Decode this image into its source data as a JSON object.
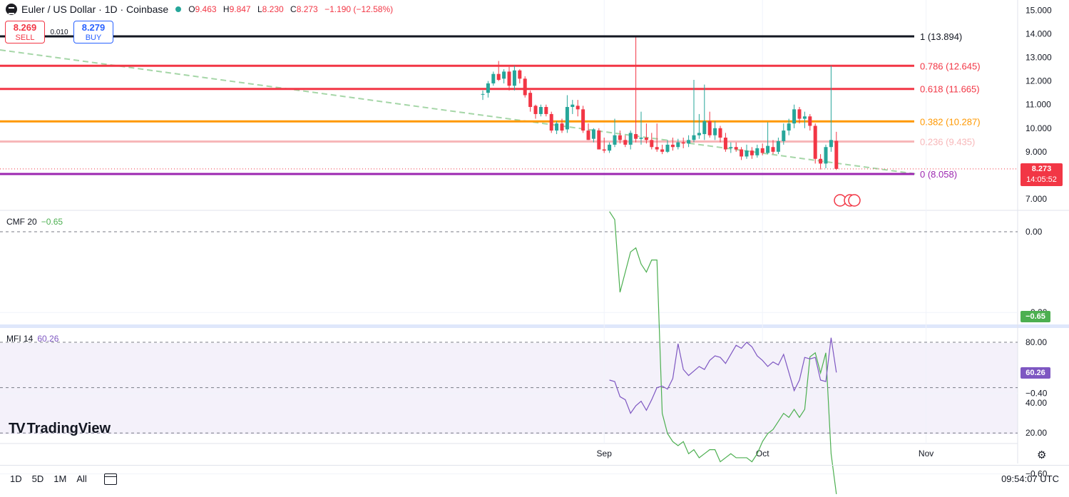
{
  "header": {
    "symbol": "Euler / US Dollar · 1D · Coinbase",
    "open_label": "O",
    "open": "9.463",
    "high_label": "H",
    "high": "9.847",
    "low_label": "L",
    "low": "8.230",
    "close_label": "C",
    "close": "8.273",
    "change": "−1.190 (−12.58%)"
  },
  "trade": {
    "sell_price": "8.269",
    "sell_label": "SELL",
    "spread": "0.010",
    "buy_price": "8.279",
    "buy_label": "BUY"
  },
  "colors": {
    "up": "#26a69a",
    "down": "#f23645",
    "fib_1": "#131722",
    "fib_786": "#f23645",
    "fib_618": "#f23645",
    "fib_382": "#ff9800",
    "fib_236": "#f7b7b9",
    "fib_0": "#9c27b0",
    "cmf": "#4caf50",
    "mfi": "#7e57c2",
    "trend": "#a5d6a7"
  },
  "fib_levels": [
    {
      "label": "1 (13.894)",
      "value": 13.894,
      "color_key": "fib_1"
    },
    {
      "label": "0.786 (12.645)",
      "value": 12.645,
      "color_key": "fib_786"
    },
    {
      "label": "0.618 (11.665)",
      "value": 11.665,
      "color_key": "fib_618"
    },
    {
      "label": "0.382 (10.287)",
      "value": 10.287,
      "color_key": "fib_382"
    },
    {
      "label": "0.236 (9.435)",
      "value": 9.435,
      "color_key": "fib_236"
    },
    {
      "label": "0 (8.058)",
      "value": 8.058,
      "color_key": "fib_0"
    }
  ],
  "price_axis_ticks": [
    "15.000",
    "14.000",
    "13.000",
    "12.000",
    "11.000",
    "10.000",
    "9.000",
    "7.000"
  ],
  "last_price": {
    "value": "8.273",
    "countdown": "14:05:52"
  },
  "cmf": {
    "label": "CMF 20",
    "value": "−0.65",
    "tag": "−0.65",
    "ticks": [
      "0.00",
      "−0.20",
      "−0.40",
      "−0.60"
    ],
    "values": [
      0.05,
      0.03,
      -0.15,
      -0.1,
      -0.05,
      -0.04,
      -0.08,
      -0.1,
      -0.07,
      -0.07,
      -0.45,
      -0.5,
      -0.52,
      -0.53,
      -0.52,
      -0.55,
      -0.54,
      -0.56,
      -0.55,
      -0.54,
      -0.54,
      -0.57,
      -0.56,
      -0.55,
      -0.56,
      -0.56,
      -0.56,
      -0.57,
      -0.55,
      -0.52,
      -0.5,
      -0.49,
      -0.47,
      -0.45,
      -0.46,
      -0.44,
      -0.46,
      -0.44,
      -0.31,
      -0.3,
      -0.35,
      -0.3,
      -0.55,
      -0.65
    ]
  },
  "mfi": {
    "label": "MFI 14",
    "value": "60.26",
    "tag": "60.26",
    "ticks": [
      "80.00",
      "40.00",
      "20.00"
    ],
    "values": [
      55,
      54,
      44,
      42,
      33,
      38,
      41,
      35,
      42,
      50,
      51,
      49,
      56,
      79,
      62,
      58,
      61,
      64,
      62,
      68,
      71,
      70,
      66,
      72,
      78,
      76,
      80,
      77,
      71,
      68,
      64,
      67,
      65,
      72,
      60,
      48,
      55,
      70,
      69,
      70,
      55,
      54,
      83,
      60
    ]
  },
  "candles": [
    {
      "d": 0,
      "o": 11.45,
      "h": 11.6,
      "l": 11.2,
      "c": 11.45
    },
    {
      "d": 1,
      "o": 11.5,
      "h": 12.0,
      "l": 11.3,
      "c": 11.9
    },
    {
      "d": 2,
      "o": 11.9,
      "h": 12.4,
      "l": 11.8,
      "c": 12.3
    },
    {
      "d": 3,
      "o": 12.3,
      "h": 12.85,
      "l": 12.0,
      "c": 12.05
    },
    {
      "d": 4,
      "o": 12.1,
      "h": 12.5,
      "l": 11.9,
      "c": 12.4
    },
    {
      "d": 5,
      "o": 12.4,
      "h": 12.6,
      "l": 11.6,
      "c": 11.8
    },
    {
      "d": 6,
      "o": 11.8,
      "h": 12.65,
      "l": 11.6,
      "c": 12.45
    },
    {
      "d": 7,
      "o": 12.45,
      "h": 12.5,
      "l": 11.9,
      "c": 12.1
    },
    {
      "d": 8,
      "o": 12.1,
      "h": 12.2,
      "l": 11.3,
      "c": 11.4
    },
    {
      "d": 9,
      "o": 11.5,
      "h": 11.6,
      "l": 10.7,
      "c": 10.9
    },
    {
      "d": 10,
      "o": 10.95,
      "h": 11.0,
      "l": 10.4,
      "c": 10.6
    },
    {
      "d": 11,
      "o": 10.6,
      "h": 11.0,
      "l": 10.5,
      "c": 10.9
    },
    {
      "d": 12,
      "o": 10.9,
      "h": 11.0,
      "l": 10.5,
      "c": 10.6
    },
    {
      "d": 13,
      "o": 10.6,
      "h": 10.7,
      "l": 9.8,
      "c": 9.9
    },
    {
      "d": 14,
      "o": 9.9,
      "h": 10.3,
      "l": 9.75,
      "c": 10.2
    },
    {
      "d": 15,
      "o": 10.2,
      "h": 10.4,
      "l": 9.8,
      "c": 9.9
    },
    {
      "d": 16,
      "o": 9.95,
      "h": 11.4,
      "l": 9.8,
      "c": 10.9
    },
    {
      "d": 17,
      "o": 10.9,
      "h": 11.2,
      "l": 10.6,
      "c": 11.0
    },
    {
      "d": 18,
      "o": 10.95,
      "h": 11.2,
      "l": 10.5,
      "c": 10.8
    },
    {
      "d": 19,
      "o": 10.8,
      "h": 10.95,
      "l": 9.8,
      "c": 9.9
    },
    {
      "d": 20,
      "o": 9.9,
      "h": 10.2,
      "l": 9.5,
      "c": 9.5
    },
    {
      "d": 21,
      "o": 9.55,
      "h": 10.0,
      "l": 9.4,
      "c": 9.95
    },
    {
      "d": 22,
      "o": 9.9,
      "h": 10.0,
      "l": 9.1,
      "c": 9.1
    },
    {
      "d": 23,
      "o": 9.1,
      "h": 9.6,
      "l": 8.95,
      "c": 9.05
    },
    {
      "d": 24,
      "o": 9.05,
      "h": 9.4,
      "l": 8.95,
      "c": 9.3
    },
    {
      "d": 25,
      "o": 9.3,
      "h": 10.4,
      "l": 9.2,
      "c": 9.7
    },
    {
      "d": 26,
      "o": 9.7,
      "h": 9.9,
      "l": 9.35,
      "c": 9.5
    },
    {
      "d": 27,
      "o": 9.5,
      "h": 9.7,
      "l": 9.2,
      "c": 9.3
    },
    {
      "d": 28,
      "o": 9.3,
      "h": 9.9,
      "l": 9.1,
      "c": 9.8
    },
    {
      "d": 29,
      "o": 9.75,
      "h": 13.85,
      "l": 9.4,
      "c": 9.55
    },
    {
      "d": 30,
      "o": 9.55,
      "h": 10.7,
      "l": 9.3,
      "c": 9.6
    },
    {
      "d": 31,
      "o": 9.6,
      "h": 10.2,
      "l": 9.35,
      "c": 9.5
    },
    {
      "d": 32,
      "o": 9.5,
      "h": 9.8,
      "l": 9.1,
      "c": 9.2
    },
    {
      "d": 33,
      "o": 9.2,
      "h": 10.2,
      "l": 9.0,
      "c": 9.1
    },
    {
      "d": 34,
      "o": 9.1,
      "h": 9.3,
      "l": 8.9,
      "c": 9.0
    },
    {
      "d": 35,
      "o": 9.0,
      "h": 9.5,
      "l": 8.95,
      "c": 9.3
    },
    {
      "d": 36,
      "o": 9.3,
      "h": 9.6,
      "l": 9.05,
      "c": 9.2
    },
    {
      "d": 37,
      "o": 9.2,
      "h": 9.55,
      "l": 9.1,
      "c": 9.4
    },
    {
      "d": 38,
      "o": 9.4,
      "h": 9.6,
      "l": 9.15,
      "c": 9.35
    },
    {
      "d": 39,
      "o": 9.35,
      "h": 9.7,
      "l": 9.2,
      "c": 9.5
    },
    {
      "d": 40,
      "o": 9.5,
      "h": 12.05,
      "l": 9.4,
      "c": 9.7
    },
    {
      "d": 41,
      "o": 9.7,
      "h": 10.6,
      "l": 9.55,
      "c": 9.8
    },
    {
      "d": 42,
      "o": 9.75,
      "h": 11.85,
      "l": 9.5,
      "c": 10.3
    },
    {
      "d": 43,
      "o": 10.3,
      "h": 10.7,
      "l": 9.6,
      "c": 9.7
    },
    {
      "d": 44,
      "o": 9.7,
      "h": 10.3,
      "l": 9.5,
      "c": 10.0
    },
    {
      "d": 45,
      "o": 10.0,
      "h": 10.1,
      "l": 9.4,
      "c": 9.6
    },
    {
      "d": 46,
      "o": 9.6,
      "h": 9.8,
      "l": 9.0,
      "c": 9.1
    },
    {
      "d": 47,
      "o": 9.15,
      "h": 9.4,
      "l": 8.95,
      "c": 9.2
    },
    {
      "d": 48,
      "o": 9.2,
      "h": 9.4,
      "l": 9.0,
      "c": 9.1
    },
    {
      "d": 49,
      "o": 9.1,
      "h": 9.2,
      "l": 8.65,
      "c": 8.8
    },
    {
      "d": 50,
      "o": 8.8,
      "h": 9.3,
      "l": 8.7,
      "c": 9.05
    },
    {
      "d": 51,
      "o": 9.05,
      "h": 9.2,
      "l": 8.7,
      "c": 8.85
    },
    {
      "d": 52,
      "o": 8.85,
      "h": 9.3,
      "l": 8.75,
      "c": 9.15
    },
    {
      "d": 53,
      "o": 9.15,
      "h": 9.35,
      "l": 8.85,
      "c": 8.95
    },
    {
      "d": 54,
      "o": 8.95,
      "h": 10.25,
      "l": 8.9,
      "c": 9.25
    },
    {
      "d": 55,
      "o": 9.2,
      "h": 9.5,
      "l": 8.9,
      "c": 9.0
    },
    {
      "d": 56,
      "o": 9.0,
      "h": 9.6,
      "l": 8.9,
      "c": 9.45
    },
    {
      "d": 57,
      "o": 9.45,
      "h": 10.2,
      "l": 9.3,
      "c": 9.9
    },
    {
      "d": 58,
      "o": 9.9,
      "h": 10.4,
      "l": 9.7,
      "c": 10.2
    },
    {
      "d": 59,
      "o": 10.2,
      "h": 11.0,
      "l": 10.0,
      "c": 10.8
    },
    {
      "d": 60,
      "o": 10.8,
      "h": 10.9,
      "l": 10.2,
      "c": 10.4
    },
    {
      "d": 61,
      "o": 10.4,
      "h": 10.7,
      "l": 10.0,
      "c": 10.5
    },
    {
      "d": 62,
      "o": 10.5,
      "h": 10.6,
      "l": 9.9,
      "c": 10.1
    },
    {
      "d": 63,
      "o": 10.1,
      "h": 10.2,
      "l": 8.5,
      "c": 8.7
    },
    {
      "d": 64,
      "o": 8.7,
      "h": 8.9,
      "l": 8.25,
      "c": 8.5
    },
    {
      "d": 65,
      "o": 8.5,
      "h": 9.3,
      "l": 8.3,
      "c": 9.2
    },
    {
      "d": 66,
      "o": 9.2,
      "h": 12.65,
      "l": 9.0,
      "c": 9.5
    },
    {
      "d": 67,
      "o": 9.463,
      "h": 9.847,
      "l": 8.23,
      "c": 8.273
    }
  ],
  "x_axis": [
    {
      "label": "Sep",
      "day": 23
    },
    {
      "label": "Oct",
      "day": 53
    },
    {
      "label": "Nov",
      "day": 84
    }
  ],
  "range_buttons": [
    "1D",
    "5D",
    "1M",
    "All"
  ],
  "clock": "09:54:07 UTC",
  "branding": "TradingView"
}
